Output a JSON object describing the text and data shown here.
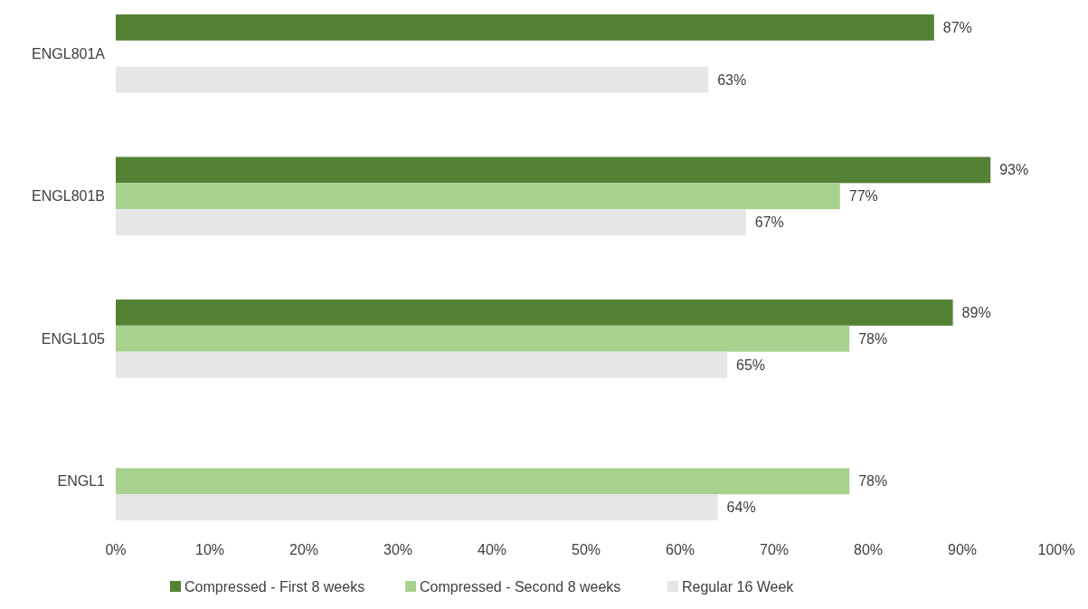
{
  "chart_data": {
    "type": "bar",
    "orientation": "horizontal",
    "categories": [
      "ENGL801A",
      "ENGL801B",
      "ENGL105",
      "ENGL1"
    ],
    "series": [
      {
        "name": "Compressed - First 8 weeks",
        "color": "#548235",
        "values": [
          87,
          93,
          89,
          null
        ],
        "value_labels": [
          "87%",
          "93%",
          "89%",
          null
        ]
      },
      {
        "name": "Compressed - Second 8 weeks",
        "color": "#a9d18e",
        "values": [
          null,
          77,
          78,
          78
        ],
        "value_labels": [
          null,
          "77%",
          "78%",
          "78%"
        ]
      },
      {
        "name": "Regular 16 Week",
        "color": "#e7e6e6",
        "values": [
          63,
          67,
          65,
          64
        ],
        "value_labels": [
          "63%",
          "67%",
          "65%",
          "64%"
        ]
      }
    ],
    "xlim": [
      0,
      100
    ],
    "xticks": [
      {
        "value": 0,
        "label": "0%"
      },
      {
        "value": 10,
        "label": "10%"
      },
      {
        "value": 20,
        "label": "20%"
      },
      {
        "value": 30,
        "label": "30%"
      },
      {
        "value": 40,
        "label": "40%"
      },
      {
        "value": 50,
        "label": "50%"
      },
      {
        "value": 60,
        "label": "60%"
      },
      {
        "value": 70,
        "label": "70%"
      },
      {
        "value": 80,
        "label": "80%"
      },
      {
        "value": 90,
        "label": "90%"
      },
      {
        "value": 100,
        "label": "100%"
      }
    ],
    "legend": "bottom"
  }
}
